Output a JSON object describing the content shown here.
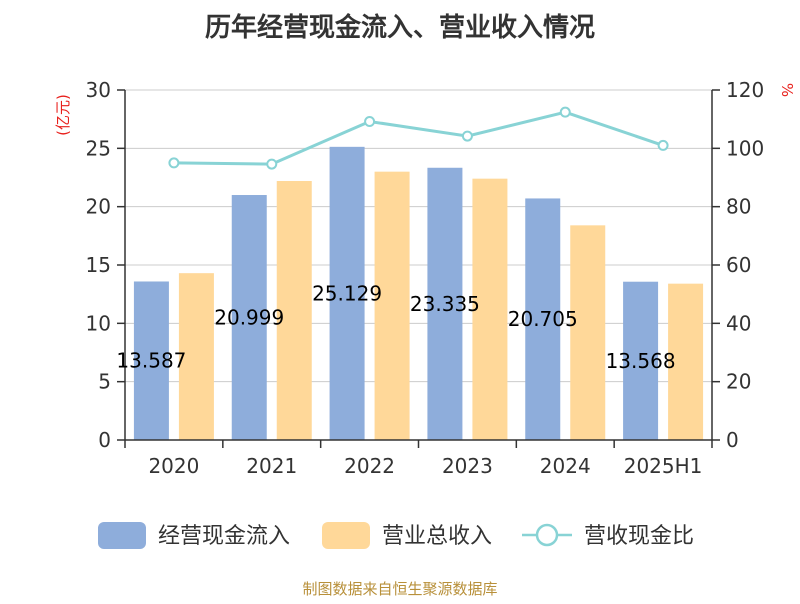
{
  "chart_data": {
    "type": "bar",
    "title": "历年经营现金流入、营业收入情况",
    "categories": [
      "2020",
      "2021",
      "2022",
      "2023",
      "2024",
      "2025H1"
    ],
    "series": [
      {
        "name": "经营现金流入",
        "kind": "bar",
        "axis": "left",
        "color": "#8eaddb",
        "values": [
          13.587,
          20.999,
          25.129,
          23.335,
          20.705,
          13.568
        ],
        "labels": [
          "13.587",
          "20.999",
          "25.129",
          "23.335",
          "20.705",
          "13.568"
        ]
      },
      {
        "name": "营业总收入",
        "kind": "bar",
        "axis": "left",
        "color": "#ffd899",
        "values": [
          14.3,
          22.2,
          23.0,
          22.4,
          18.4,
          13.4
        ]
      },
      {
        "name": "营收现金比",
        "kind": "line",
        "axis": "right",
        "color": "#88d3d5",
        "values": [
          95.0,
          94.6,
          109.2,
          104.2,
          112.4,
          101.0
        ]
      }
    ],
    "y_left": {
      "label": "(亿元)",
      "min": 0,
      "max": 30,
      "ticks": [
        0,
        5,
        10,
        15,
        20,
        25,
        30
      ]
    },
    "y_right": {
      "label": "%",
      "min": 0,
      "max": 120,
      "ticks": [
        0,
        20,
        40,
        60,
        80,
        100,
        120
      ]
    },
    "grid": true,
    "legend_position": "bottom"
  },
  "source_text": "制图数据来自恒生聚源数据库"
}
